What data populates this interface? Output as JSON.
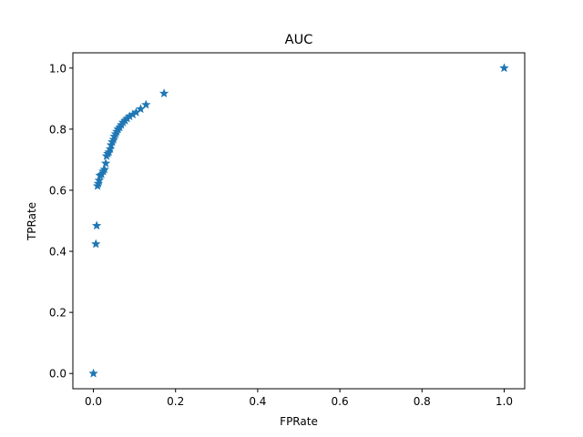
{
  "chart_data": {
    "type": "scatter",
    "title": "AUC",
    "xlabel": "FPRate",
    "ylabel": "TPRate",
    "xlim": [
      -0.05,
      1.05
    ],
    "ylim": [
      -0.05,
      1.05
    ],
    "x_ticks": [
      "0.0",
      "0.2",
      "0.4",
      "0.6",
      "0.8",
      "1.0"
    ],
    "y_ticks": [
      "0.0",
      "0.2",
      "0.4",
      "0.6",
      "0.8",
      "1.0"
    ],
    "grid": false,
    "legend": "none",
    "marker": "star",
    "color": "#1f77b4",
    "series": [
      {
        "points": [
          [
            0.0,
            0.0
          ],
          [
            0.006,
            0.424
          ],
          [
            0.008,
            0.484
          ],
          [
            0.01,
            0.614
          ],
          [
            0.012,
            0.622
          ],
          [
            0.014,
            0.632
          ],
          [
            0.016,
            0.648
          ],
          [
            0.02,
            0.652
          ],
          [
            0.024,
            0.662
          ],
          [
            0.027,
            0.668
          ],
          [
            0.03,
            0.688
          ],
          [
            0.032,
            0.712
          ],
          [
            0.035,
            0.72
          ],
          [
            0.038,
            0.725
          ],
          [
            0.041,
            0.735
          ],
          [
            0.043,
            0.748
          ],
          [
            0.046,
            0.758
          ],
          [
            0.049,
            0.766
          ],
          [
            0.051,
            0.776
          ],
          [
            0.054,
            0.784
          ],
          [
            0.057,
            0.792
          ],
          [
            0.06,
            0.8
          ],
          [
            0.064,
            0.806
          ],
          [
            0.068,
            0.814
          ],
          [
            0.072,
            0.822
          ],
          [
            0.077,
            0.828
          ],
          [
            0.082,
            0.835
          ],
          [
            0.088,
            0.842
          ],
          [
            0.096,
            0.848
          ],
          [
            0.104,
            0.855
          ],
          [
            0.115,
            0.866
          ],
          [
            0.128,
            0.88
          ],
          [
            0.172,
            0.917
          ],
          [
            1.0,
            1.0
          ]
        ]
      }
    ]
  }
}
